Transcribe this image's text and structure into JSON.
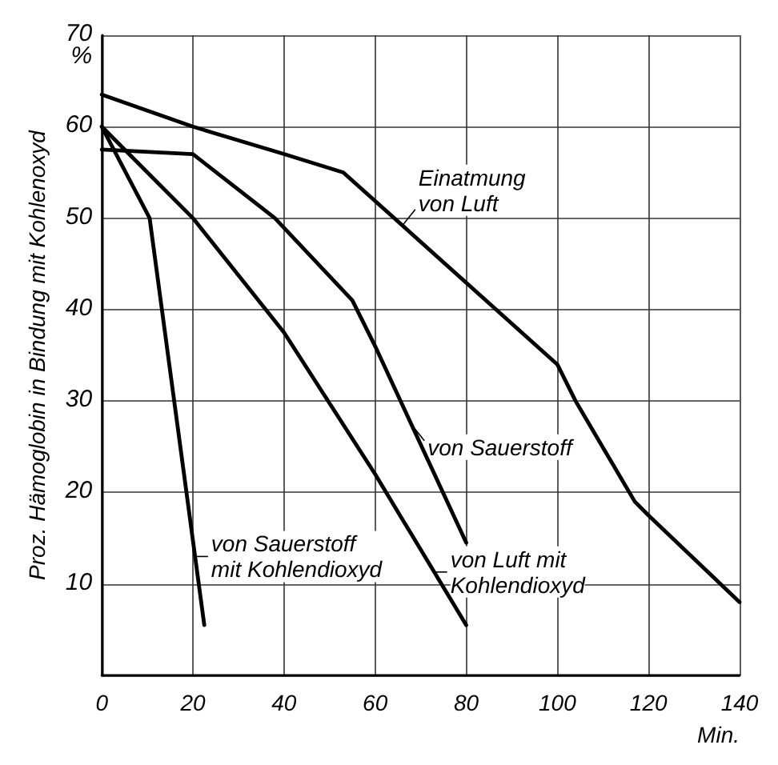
{
  "chart_data": {
    "type": "line",
    "ylabel": "Proz. Hämoglobin in Bindung mit Kohlenoxyd",
    "xlabel": "Min.",
    "xlim": [
      0,
      140
    ],
    "xticks": [
      0,
      20,
      40,
      60,
      80,
      100,
      120,
      140
    ],
    "ylim": [
      0,
      70
    ],
    "yticks": [
      {
        "value": 0,
        "label": null
      },
      10,
      20,
      30,
      40,
      50,
      60,
      {
        "value": 70,
        "label": "70\n%"
      }
    ],
    "grid": true,
    "marker": "none",
    "line_style": "solid",
    "series": [
      {
        "color": "#000000",
        "x": [
          0,
          20,
          40,
          53,
          100,
          104,
          117,
          120,
          140
        ],
        "values": [
          63.5,
          60,
          57,
          55,
          34,
          30,
          19,
          17.5,
          8
        ]
      },
      {
        "color": "#000000",
        "x": [
          0,
          20,
          38,
          55,
          60,
          80
        ],
        "values": [
          57.5,
          57,
          50,
          41,
          36,
          14.5
        ]
      },
      {
        "color": "#000000",
        "x": [
          0,
          20,
          40,
          60,
          80
        ],
        "values": [
          60,
          50,
          37.5,
          22,
          5.5
        ]
      },
      {
        "color": "#000000",
        "x": [
          0,
          10.5,
          22.5
        ],
        "values": [
          60,
          50,
          5.5
        ]
      }
    ],
    "annotations": [
      {
        "text": "Einatmung\nvon Luft",
        "x": 66,
        "y": 49.2
      },
      {
        "text": "von Sauerstoff",
        "x": 68,
        "y": 27.4
      },
      {
        "text": "von Sauerstoff\nmit Kohlendioxyd",
        "x": 20.5,
        "y": 13
      },
      {
        "text": "von Luft mit\nKohlendioxyd",
        "x": 73,
        "y": 11.3
      }
    ]
  }
}
